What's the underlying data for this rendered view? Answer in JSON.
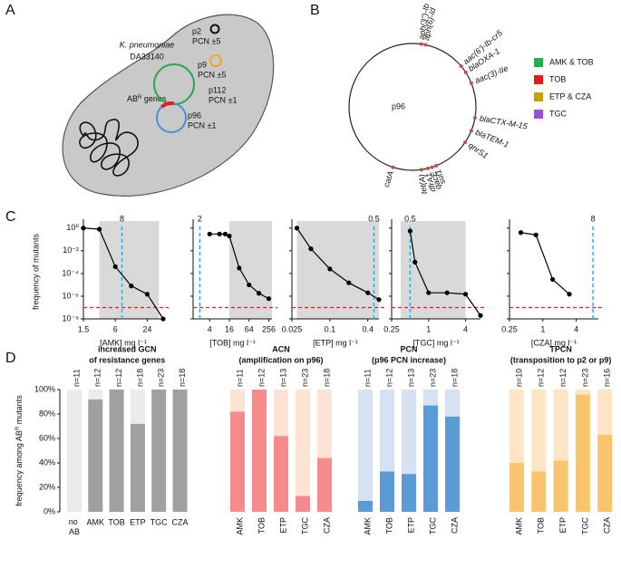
{
  "panel_labels": [
    "A",
    "B",
    "C",
    "D"
  ],
  "panel_a": {
    "organism": "K. pneumoniae",
    "strain": "DA33140",
    "plasmids": [
      {
        "name": "p2",
        "pcn": "PCN ±5",
        "color": "#111111"
      },
      {
        "name": "p9",
        "pcn": "PCN ±5",
        "color": "#f5a623"
      },
      {
        "name": "p112",
        "pcn": "PCN ±1",
        "color": "#2aa84a"
      },
      {
        "name": "p96",
        "pcn": "PCN ±1",
        "color": "#4a90d9"
      }
    ],
    "genes_label": {
      "text": "AB",
      "sup": "R",
      "rest": " genes"
    },
    "genes_color": "#e02020"
  },
  "panel_b": {
    "plasmid": "p96",
    "genes": [
      {
        "label": "aph(3'')-Ib",
        "color": "#222222"
      },
      {
        "label": "aph(6)-Id",
        "color": "#222222"
      },
      {
        "label": "aac(6')-Ib-cr5",
        "color": "#1a9e3f"
      },
      {
        "label": "blaOXA-1",
        "color": "#c9a000"
      },
      {
        "label": "aac(3)-IIe",
        "color": "#e41a1c"
      },
      {
        "label": "blaCTX-M-15",
        "color": "#c9a000"
      },
      {
        "label": "blaTEM-1",
        "color": "#c9a000"
      },
      {
        "label": "qnrS1",
        "color": "#222222"
      },
      {
        "label": "sul1",
        "color": "#222222"
      },
      {
        "label": "qacE",
        "color": "#222222"
      },
      {
        "label": "dfrA1",
        "color": "#222222"
      },
      {
        "label": "tet(A)",
        "color": "#9b30d9"
      },
      {
        "label": "catA",
        "color": "#222222"
      }
    ],
    "legend": [
      {
        "label": "AMK & TOB",
        "color": "#1fb24a"
      },
      {
        "label": "TOB",
        "color": "#e41a1c"
      },
      {
        "label": "ETP & CZA",
        "color": "#c9a000"
      },
      {
        "label": "TGC",
        "color": "#9b4fd9"
      }
    ]
  },
  "chart_data": [
    {
      "type": "line",
      "xlabel": "[AMK] mg l⁻¹",
      "ylabel": "frequency of mutants",
      "log_x": true,
      "log_y": true,
      "x": [
        1.5,
        3,
        6,
        12,
        24,
        48
      ],
      "values": [
        1,
        0.8,
        0.0004,
        8e-06,
        1.5e-06,
        1e-08
      ],
      "color": "#000000",
      "xlim": [
        1.5,
        48
      ],
      "xticks": [
        1.5,
        6,
        24
      ],
      "ylim": [
        1e-08,
        2
      ],
      "yticks": [
        {
          "value": 1,
          "label": "10⁰"
        },
        {
          "value": 0.01,
          "label": "10⁻²"
        },
        {
          "value": 0.0001,
          "label": "10⁻⁴"
        },
        {
          "value": 1e-06,
          "label": "10⁻⁶"
        },
        {
          "value": 1e-08,
          "label": "10⁻⁸"
        }
      ],
      "show_ytick_labels": true,
      "shade": [
        3,
        40
      ],
      "breakpoint": 8,
      "detection_limit": 1e-07,
      "breakpoint_color": "#29a8e0",
      "limit_color": "#e02020"
    },
    {
      "type": "line",
      "xlabel": "[TOB] mg l⁻¹",
      "log_x": true,
      "log_y": true,
      "x": [
        4,
        8,
        12,
        16,
        32,
        64,
        128,
        256
      ],
      "values": [
        0.3,
        0.3,
        0.3,
        0.2,
        0.0003,
        1e-05,
        1.8e-06,
        6e-07
      ],
      "color": "#000000",
      "xlim": [
        1.25,
        320
      ],
      "xticks": [
        4,
        16,
        64,
        256
      ],
      "ylim": [
        1e-08,
        2
      ],
      "yticks": [
        1,
        0.01,
        0.0001,
        1e-06,
        1e-08
      ],
      "show_ytick_labels": false,
      "shade": [
        16,
        320
      ],
      "breakpoint": 2,
      "detection_limit": 1e-07,
      "breakpoint_color": "#29a8e0",
      "limit_color": "#e02020"
    },
    {
      "type": "line",
      "xlabel": "[ETP] mg l⁻¹",
      "log_x": true,
      "log_y": true,
      "x": [
        0.03,
        0.05,
        0.1,
        0.2,
        0.4,
        0.6
      ],
      "values": [
        1,
        0.015,
        0.00025,
        1.5e-05,
        2e-06,
        5e-07
      ],
      "color": "#000000",
      "xlim": [
        0.025,
        0.6
      ],
      "xticks": [
        0.025,
        0.1,
        0.4
      ],
      "ylim": [
        1e-08,
        2
      ],
      "yticks": [
        1,
        0.01,
        0.0001,
        1e-06,
        1e-08
      ],
      "show_ytick_labels": false,
      "shade": [
        0.03,
        0.6
      ],
      "breakpoint": 0.5,
      "detection_limit": 1e-07,
      "breakpoint_color": "#29a8e0",
      "limit_color": "#e02020"
    },
    {
      "type": "line",
      "xlabel": "[TGC] mg l⁻¹",
      "log_x": true,
      "log_y": true,
      "x": [
        0.5,
        0.6,
        1,
        2,
        4,
        7
      ],
      "values": [
        0.55,
        0.001,
        2e-06,
        2e-06,
        1.5e-06,
        2e-08
      ],
      "color": "#000000",
      "xlim": [
        0.25,
        7
      ],
      "xticks": [
        0.25,
        1,
        4
      ],
      "ylim": [
        1e-08,
        2
      ],
      "yticks": [
        1,
        0.01,
        0.0001,
        1e-06,
        1e-08
      ],
      "show_ytick_labels": false,
      "shade": [
        0.35,
        4
      ],
      "breakpoint": 0.5,
      "detection_limit": 1e-07,
      "breakpoint_color": "#29a8e0",
      "limit_color": "#e02020"
    },
    {
      "type": "line",
      "xlabel": "[CZA] mg l⁻¹",
      "log_x": true,
      "log_y": true,
      "x": [
        0.4,
        0.75,
        1.5,
        3
      ],
      "values": [
        0.4,
        0.25,
        3e-05,
        1.5e-06
      ],
      "color": "#000000",
      "xlim": [
        0.25,
        10
      ],
      "xticks": [
        0.25,
        1,
        4
      ],
      "ylim": [
        1e-08,
        2
      ],
      "yticks": [
        1,
        0.01,
        0.0001,
        1e-06,
        1e-08
      ],
      "show_ytick_labels": false,
      "breakpoint": 8,
      "detection_limit": 1e-07,
      "breakpoint_color": "#29a8e0",
      "limit_color": "#e02020"
    },
    {
      "type": "bar",
      "title": [
        "increased GCN",
        "of resistance genes"
      ],
      "ylabel": {
        "text": "frequency among AB",
        "sup": "R",
        "rest": " mutants"
      },
      "categories": [
        "no AB",
        "AMK",
        "TOB",
        "ETP",
        "TGC",
        "CZA"
      ],
      "n_labels": [
        "n=11",
        "n=12",
        "n=12",
        "n=18",
        "n=23",
        "n=18"
      ],
      "series": [
        {
          "color": "#a0a0a0",
          "values": [
            0,
            92,
            100,
            72,
            100,
            100
          ]
        },
        {
          "color": "#ebebeb",
          "values": [
            100,
            8,
            0,
            28,
            0,
            0
          ]
        }
      ],
      "ylim": [
        0,
        100
      ],
      "yticks": [
        {
          "value": 0,
          "label": "0%"
        },
        {
          "value": 20,
          "label": "20%"
        },
        {
          "value": 40,
          "label": "40%"
        },
        {
          "value": 60,
          "label": "60%"
        },
        {
          "value": 80,
          "label": "80%"
        },
        {
          "value": 100,
          "label": "100%"
        }
      ]
    },
    {
      "type": "bar",
      "title": [
        "ACN",
        "(amplification on p96)"
      ],
      "categories": [
        "AMK",
        "TOB",
        "ETP",
        "TGC",
        "CZA"
      ],
      "n_labels": [
        "n=11",
        "n=12",
        "n=13",
        "n=23",
        "n=18"
      ],
      "series": [
        {
          "color": "#f58b8b",
          "values": [
            82,
            100,
            62,
            13,
            44
          ]
        },
        {
          "color": "#fde3d4",
          "values": [
            18,
            0,
            38,
            87,
            56
          ]
        }
      ],
      "ylim": [
        0,
        100
      ]
    },
    {
      "type": "bar",
      "title": [
        "PCN",
        "(p96 PCN increase)"
      ],
      "categories": [
        "AMK",
        "TOB",
        "ETP",
        "TGC",
        "CZA"
      ],
      "n_labels": [
        "n=11",
        "n=12",
        "n=13",
        "n=23",
        "n=18"
      ],
      "series": [
        {
          "color": "#5b9bd5",
          "values": [
            9,
            33,
            31,
            87,
            78
          ]
        },
        {
          "color": "#d6e2f3",
          "values": [
            91,
            67,
            69,
            13,
            22
          ]
        }
      ],
      "ylim": [
        0,
        100
      ]
    },
    {
      "type": "bar",
      "title": [
        "TPCN",
        "(transposition to p2 or p9)"
      ],
      "categories": [
        "AMK",
        "TOB",
        "ETP",
        "TGC",
        "CZA"
      ],
      "n_labels": [
        "n=10",
        "n=12",
        "n=12",
        "n=23",
        "n=16"
      ],
      "series": [
        {
          "color": "#f9c46b",
          "values": [
            40,
            33,
            42,
            96,
            63
          ]
        },
        {
          "color": "#fde5c5",
          "values": [
            60,
            67,
            58,
            4,
            37
          ]
        }
      ],
      "ylim": [
        0,
        100
      ]
    }
  ]
}
